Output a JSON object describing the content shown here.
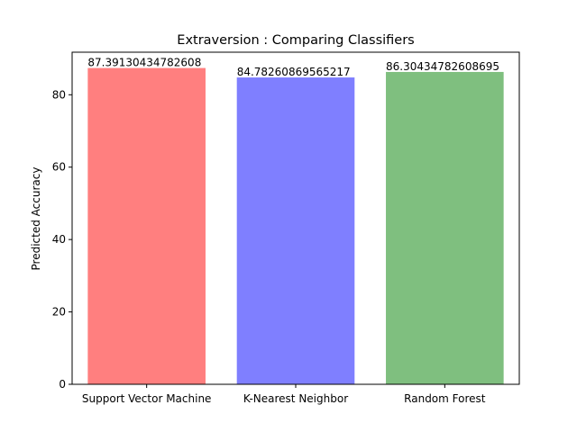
{
  "chart_data": {
    "type": "bar",
    "title": "Extraversion : Comparing Classifiers",
    "xlabel": "",
    "ylabel": "Predicted Accuracy",
    "ylim": [
      0,
      91.76
    ],
    "yticks": [
      0,
      20,
      40,
      60,
      80
    ],
    "grid": false,
    "legend": "none",
    "categories": [
      "Support Vector Machine",
      "K-Nearest Neighbor",
      "Random Forest"
    ],
    "values": [
      87.39130434782608,
      84.78260869565217,
      86.30434782608695
    ],
    "value_labels": [
      "87.39130434782608",
      "84.78260869565217",
      "86.30434782608695"
    ],
    "colors": [
      "#ff7f7f",
      "#7f7fff",
      "#7fbf7f"
    ]
  }
}
